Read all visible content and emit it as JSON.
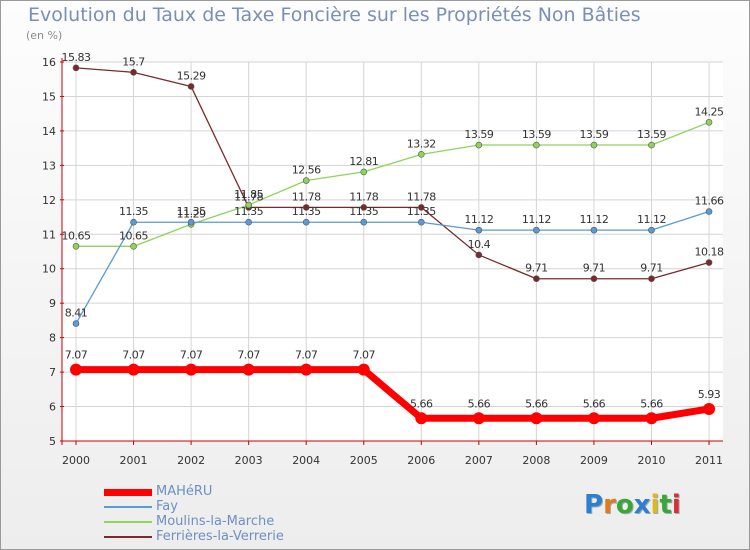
{
  "header": {
    "title": "Evolution du Taux de Taxe Foncière sur les Propriétés Non Bâties",
    "unit": "(en %)"
  },
  "logo": {
    "text": "Proxiti",
    "letters": [
      "P",
      "r",
      "o",
      "x",
      "i",
      "t",
      "i"
    ],
    "colors": [
      "#2f7fd0",
      "#e07a1c",
      "#3aa63a",
      "#2f7fd0",
      "#e0b81c",
      "#3aa63a",
      "#d83030"
    ]
  },
  "chart_data": {
    "type": "line",
    "title": "Evolution du Taux de Taxe Foncière sur les Propriétés Non Bâties",
    "ylabel": "(en %)",
    "xlabel": "",
    "x": [
      "2000",
      "2001",
      "2002",
      "2003",
      "2004",
      "2005",
      "2006",
      "2007",
      "2008",
      "2009",
      "2010",
      "2011"
    ],
    "ylim": [
      5,
      16
    ],
    "yticks": [
      "5",
      "6",
      "7",
      "8",
      "9",
      "10",
      "11",
      "12",
      "13",
      "14",
      "15",
      "16"
    ],
    "series": [
      {
        "name": "MAHéRU",
        "color": "#ff0000",
        "width": 7,
        "marker": 6,
        "values": [
          7.07,
          7.07,
          7.07,
          7.07,
          7.07,
          7.07,
          5.66,
          5.66,
          5.66,
          5.66,
          5.66,
          5.93
        ],
        "labels": [
          "7.07",
          "7.07",
          "7.07",
          "7.07",
          "7.07",
          "7.07",
          "5.66",
          "5.66",
          "5.66",
          "5.66",
          "5.66",
          "5.93"
        ]
      },
      {
        "name": "Fay",
        "color": "#5a9ad6",
        "width": 1.3,
        "marker": 3,
        "values": [
          8.41,
          11.35,
          11.35,
          11.35,
          11.35,
          11.35,
          11.35,
          11.12,
          11.12,
          11.12,
          11.12,
          11.66
        ],
        "labels": [
          "8.41",
          "11.35",
          "11.35",
          "11.35",
          "11.35",
          "11.35",
          "11.35",
          "11.12",
          "11.12",
          "11.12",
          "11.12",
          "11.66"
        ]
      },
      {
        "name": "Moulins-la-Marche",
        "color": "#8fd45a",
        "width": 1.3,
        "marker": 3,
        "values": [
          10.65,
          10.65,
          11.29,
          11.85,
          12.56,
          12.81,
          13.32,
          13.59,
          13.59,
          13.59,
          13.59,
          14.25
        ],
        "labels": [
          "10.65",
          "10.65",
          "11.29",
          "11.85",
          "12.56",
          "12.81",
          "13.32",
          "13.59",
          "13.59",
          "13.59",
          "13.59",
          "14.25"
        ]
      },
      {
        "name": "Ferrières-la-Verrerie",
        "color": "#7a2a2a",
        "width": 1.3,
        "marker": 3,
        "values": [
          15.83,
          15.7,
          15.29,
          11.78,
          11.78,
          11.78,
          11.78,
          10.4,
          9.71,
          9.71,
          9.71,
          10.18
        ],
        "labels": [
          "15.83",
          "15.7",
          "15.29",
          "11.78",
          "11.78",
          "11.78",
          "11.78",
          "10.4",
          "9.71",
          "9.71",
          "9.71",
          "10.18"
        ]
      }
    ],
    "legend": "bottom-left"
  }
}
